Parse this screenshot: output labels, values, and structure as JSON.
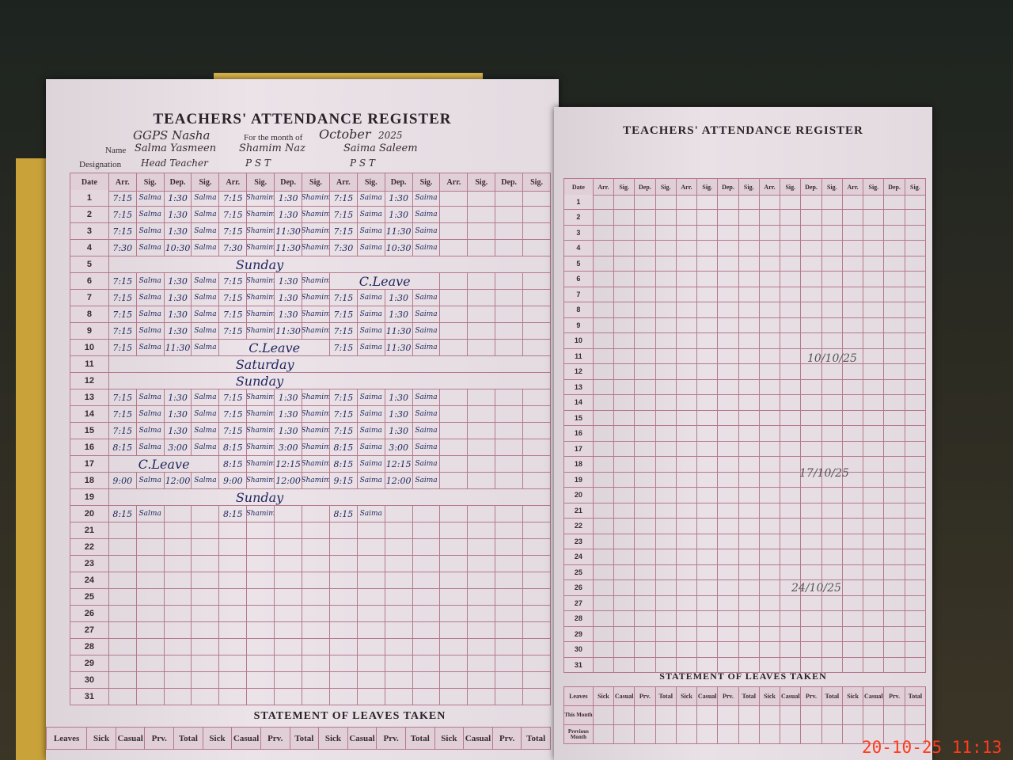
{
  "left_page": {
    "title": "TEACHERS' ATTENDANCE REGISTER",
    "school": "GGPS Nasha",
    "month_label": "For the month of",
    "month": "October",
    "year": "2025",
    "name_label": "Name",
    "designation_label": "Designation",
    "teachers": [
      {
        "name": "Salma Yasmeen",
        "designation": "Head Teacher"
      },
      {
        "name": "Shamim Naz",
        "designation": "P S T"
      },
      {
        "name": "Saima Saleem",
        "designation": "P S T"
      }
    ],
    "columns": [
      "Date",
      "Arr.",
      "Sig.",
      "Dep.",
      "Sig.",
      "Arr.",
      "Sig.",
      "Dep.",
      "Sig.",
      "Arr.",
      "Sig.",
      "Dep.",
      "Sig.",
      "Arr.",
      "Sig.",
      "Dep.",
      "Sig."
    ],
    "rows": [
      {
        "date": "1",
        "entries": [
          [
            "7:15",
            "Salma",
            "1:30",
            "Salma"
          ],
          [
            "7:15",
            "Shamim",
            "1:30",
            "Shamim"
          ],
          [
            "7:15",
            "Saima",
            "1:30",
            "Saima"
          ]
        ]
      },
      {
        "date": "2",
        "entries": [
          [
            "7:15",
            "Salma",
            "1:30",
            "Salma"
          ],
          [
            "7:15",
            "Shamim",
            "1:30",
            "Shamim"
          ],
          [
            "7:15",
            "Saima",
            "1:30",
            "Saima"
          ]
        ]
      },
      {
        "date": "3",
        "entries": [
          [
            "7:15",
            "Salma",
            "1:30",
            "Salma"
          ],
          [
            "7:15",
            "Shamim",
            "11:30",
            "Shamim"
          ],
          [
            "7:15",
            "Saima",
            "11:30",
            "Saima"
          ]
        ]
      },
      {
        "date": "4",
        "entries": [
          [
            "7:30",
            "Salma",
            "10:30",
            "Salma"
          ],
          [
            "7:30",
            "Shamim",
            "11:30",
            "Shamim"
          ],
          [
            "7:30",
            "Saima",
            "10:30",
            "Saima"
          ]
        ]
      },
      {
        "date": "5",
        "note": "Sunday"
      },
      {
        "date": "6",
        "entries": [
          [
            "7:15",
            "Salma",
            "1:30",
            "Salma"
          ],
          [
            "7:15",
            "Shamim",
            "1:30",
            "Shamim"
          ],
          "C.Leave"
        ]
      },
      {
        "date": "7",
        "entries": [
          [
            "7:15",
            "Salma",
            "1:30",
            "Salma"
          ],
          [
            "7:15",
            "Shamim",
            "1:30",
            "Shamim"
          ],
          [
            "7:15",
            "Saima",
            "1:30",
            "Saima"
          ]
        ]
      },
      {
        "date": "8",
        "entries": [
          [
            "7:15",
            "Salma",
            "1:30",
            "Salma"
          ],
          [
            "7:15",
            "Shamim",
            "1:30",
            "Shamim"
          ],
          [
            "7:15",
            "Saima",
            "1:30",
            "Saima"
          ]
        ]
      },
      {
        "date": "9",
        "entries": [
          [
            "7:15",
            "Salma",
            "1:30",
            "Salma"
          ],
          [
            "7:15",
            "Shamim",
            "11:30",
            "Shamim"
          ],
          [
            "7:15",
            "Saima",
            "11:30",
            "Saima"
          ]
        ]
      },
      {
        "date": "10",
        "entries": [
          [
            "7:15",
            "Salma",
            "11:30",
            "Salma"
          ],
          "C.Leave",
          [
            "7:15",
            "Saima",
            "11:30",
            "Saima"
          ]
        ]
      },
      {
        "date": "11",
        "note": "Saturday"
      },
      {
        "date": "12",
        "note": "Sunday"
      },
      {
        "date": "13",
        "entries": [
          [
            "7:15",
            "Salma",
            "1:30",
            "Salma"
          ],
          [
            "7:15",
            "Shamim",
            "1:30",
            "Shamim"
          ],
          [
            "7:15",
            "Saima",
            "1:30",
            "Saima"
          ]
        ]
      },
      {
        "date": "14",
        "entries": [
          [
            "7:15",
            "Salma",
            "1:30",
            "Salma"
          ],
          [
            "7:15",
            "Shamim",
            "1:30",
            "Shamim"
          ],
          [
            "7:15",
            "Saima",
            "1:30",
            "Saima"
          ]
        ]
      },
      {
        "date": "15",
        "entries": [
          [
            "7:15",
            "Salma",
            "1:30",
            "Salma"
          ],
          [
            "7:15",
            "Shamim",
            "1:30",
            "Shamim"
          ],
          [
            "7:15",
            "Saima",
            "1:30",
            "Saima"
          ]
        ]
      },
      {
        "date": "16",
        "entries": [
          [
            "8:15",
            "Salma",
            "3:00",
            "Salma"
          ],
          [
            "8:15",
            "Shamim",
            "3:00",
            "Shamim"
          ],
          [
            "8:15",
            "Saima",
            "3:00",
            "Saima"
          ]
        ]
      },
      {
        "date": "17",
        "entries": [
          "C.Leave",
          [
            "8:15",
            "Shamim",
            "12:15",
            "Shamim"
          ],
          [
            "8:15",
            "Saima",
            "12:15",
            "Saima"
          ]
        ]
      },
      {
        "date": "18",
        "entries": [
          [
            "9:00",
            "Salma",
            "12:00",
            "Salma"
          ],
          [
            "9:00",
            "Shamim",
            "12:00",
            "Shamim"
          ],
          [
            "9:15",
            "Saima",
            "12:00",
            "Saima"
          ]
        ]
      },
      {
        "date": "19",
        "note": "Sunday"
      },
      {
        "date": "20",
        "entries": [
          [
            "8:15",
            "Salma"
          ],
          [
            "8:15",
            "Shamim"
          ],
          [
            "8:15",
            "Saima"
          ]
        ]
      },
      {
        "date": "21"
      },
      {
        "date": "22"
      },
      {
        "date": "23"
      },
      {
        "date": "24"
      },
      {
        "date": "25"
      },
      {
        "date": "26"
      },
      {
        "date": "27"
      },
      {
        "date": "28"
      },
      {
        "date": "29"
      },
      {
        "date": "30"
      },
      {
        "date": "31"
      }
    ],
    "leaves_title": "STATEMENT OF LEAVES TAKEN",
    "leaves_columns": [
      "Leaves",
      "Sick",
      "Casual",
      "Prv.",
      "Total",
      "Sick",
      "Casual",
      "Prv.",
      "Total",
      "Sick",
      "Casual",
      "Prv.",
      "Total",
      "Sick",
      "Casual",
      "Prv.",
      "Total"
    ]
  },
  "right_page": {
    "title": "TEACHERS' ATTENDANCE REGISTER",
    "columns": [
      "Date",
      "Arr.",
      "Sig.",
      "Dep.",
      "Sig.",
      "Arr.",
      "Sig.",
      "Dep.",
      "Sig.",
      "Arr.",
      "Sig.",
      "Dep.",
      "Sig.",
      "Arr.",
      "Sig.",
      "Dep.",
      "Sig."
    ],
    "rows": [
      {
        "date": "1"
      },
      {
        "date": "2"
      },
      {
        "date": "3"
      },
      {
        "date": "4"
      },
      {
        "date": "5"
      },
      {
        "date": "6"
      },
      {
        "date": "7"
      },
      {
        "date": "8"
      },
      {
        "date": "9"
      },
      {
        "date": "10"
      },
      {
        "date": "11"
      },
      {
        "date": "12"
      },
      {
        "date": "13"
      },
      {
        "date": "14"
      },
      {
        "date": "15"
      },
      {
        "date": "16"
      },
      {
        "date": "17"
      },
      {
        "date": "18"
      },
      {
        "date": "19"
      },
      {
        "date": "20"
      },
      {
        "date": "21"
      },
      {
        "date": "22"
      },
      {
        "date": "23"
      },
      {
        "date": "24"
      },
      {
        "date": "25"
      },
      {
        "date": "26"
      },
      {
        "date": "27"
      },
      {
        "date": "28"
      },
      {
        "date": "29"
      },
      {
        "date": "30"
      },
      {
        "date": "31"
      }
    ],
    "signature_dates": [
      "10/10/25",
      "17/10/25",
      "24/10/25"
    ],
    "leaves_title": "STATEMENT OF LEAVES TAKEN",
    "leaves_columns": [
      "Leaves",
      "Sick",
      "Casual",
      "Prv.",
      "Total",
      "Sick",
      "Casual",
      "Prv.",
      "Total",
      "Sick",
      "Casual",
      "Prv.",
      "Total",
      "Sick",
      "Casual",
      "Prv.",
      "Total"
    ],
    "leaves_rows": [
      "This Month",
      "Previous Month"
    ]
  },
  "timestamp": "20-10-25 11:13"
}
